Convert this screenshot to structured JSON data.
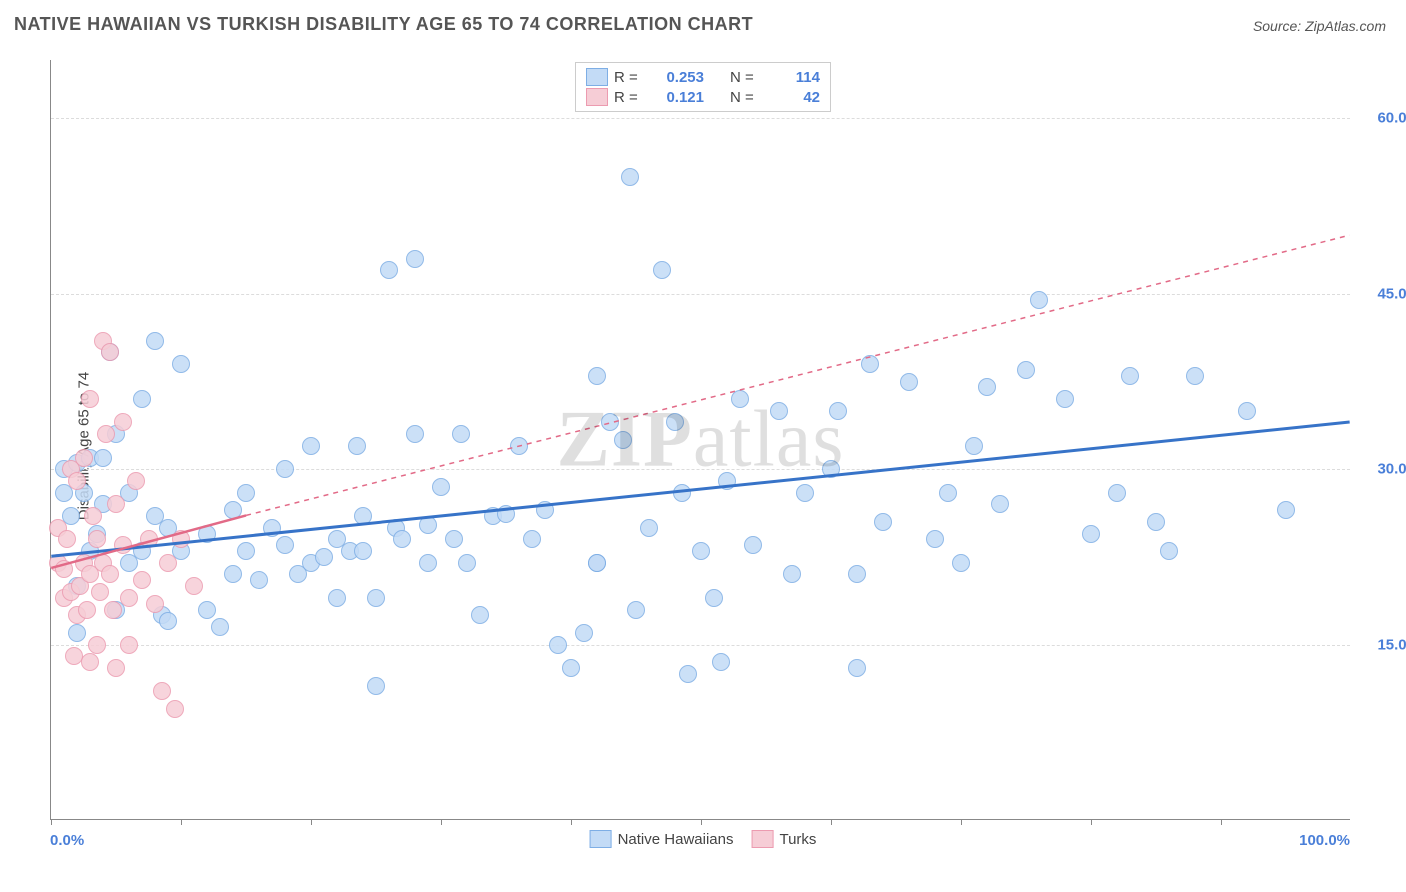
{
  "title": "NATIVE HAWAIIAN VS TURKISH DISABILITY AGE 65 TO 74 CORRELATION CHART",
  "source": "Source: ZipAtlas.com",
  "watermark_bold": "ZIP",
  "watermark_rest": "atlas",
  "ylabel": "Disability Age 65 to 74",
  "chart": {
    "type": "scatter",
    "xlim": [
      0,
      100
    ],
    "ylim": [
      0,
      65
    ],
    "x_min_label": "0.0%",
    "x_max_label": "100.0%",
    "y_ticks": [
      15,
      30,
      45,
      60
    ],
    "y_tick_labels": [
      "15.0%",
      "30.0%",
      "45.0%",
      "60.0%"
    ],
    "x_tick_positions": [
      0,
      10,
      20,
      30,
      40,
      50,
      60,
      70,
      80,
      90
    ],
    "background_color": "#ffffff",
    "grid_color": "#dcdcdc",
    "axis_color": "#888888",
    "point_radius": 9,
    "series": [
      {
        "name": "Native Hawaiians",
        "color_fill": "#c3dbf6",
        "color_stroke": "#7eaee5",
        "r_value": "0.253",
        "n_value": "114",
        "trend": {
          "x1": 0,
          "y1": 22.5,
          "x2": 100,
          "y2": 34,
          "stroke": "#3773c8",
          "width": 3,
          "dash": "none",
          "extend_x1": 0,
          "extend_y1": 22.5,
          "extend_x2": 100,
          "extend_y2": 34
        },
        "points": [
          [
            1,
            28
          ],
          [
            1,
            30
          ],
          [
            1.5,
            26
          ],
          [
            2,
            30.5
          ],
          [
            2,
            20
          ],
          [
            2,
            16
          ],
          [
            2.5,
            28
          ],
          [
            3,
            23
          ],
          [
            3,
            31
          ],
          [
            3.5,
            24.5
          ],
          [
            4,
            27
          ],
          [
            4,
            31
          ],
          [
            4.5,
            40
          ],
          [
            5,
            33
          ],
          [
            5,
            18
          ],
          [
            6,
            28
          ],
          [
            6,
            22
          ],
          [
            7,
            36
          ],
          [
            7,
            23
          ],
          [
            8,
            41
          ],
          [
            8,
            26
          ],
          [
            8.5,
            17.5
          ],
          [
            9,
            25
          ],
          [
            9,
            17
          ],
          [
            10,
            39
          ],
          [
            10,
            23
          ],
          [
            12,
            18
          ],
          [
            12,
            24.5
          ],
          [
            13,
            16.5
          ],
          [
            14,
            26.5
          ],
          [
            14,
            21
          ],
          [
            15,
            23
          ],
          [
            15,
            28
          ],
          [
            16,
            20.5
          ],
          [
            17,
            25
          ],
          [
            18,
            30
          ],
          [
            18,
            23.5
          ],
          [
            19,
            21
          ],
          [
            20,
            22
          ],
          [
            20,
            32
          ],
          [
            21,
            22.5
          ],
          [
            22,
            24
          ],
          [
            22,
            19
          ],
          [
            23,
            23
          ],
          [
            23.5,
            32
          ],
          [
            24,
            26
          ],
          [
            24,
            23
          ],
          [
            25,
            19
          ],
          [
            25,
            11.5
          ],
          [
            26,
            47
          ],
          [
            26.5,
            25
          ],
          [
            27,
            24
          ],
          [
            28,
            33
          ],
          [
            28,
            48
          ],
          [
            29,
            22
          ],
          [
            29,
            25.2
          ],
          [
            30,
            28.5
          ],
          [
            31,
            24
          ],
          [
            31.5,
            33
          ],
          [
            32,
            22
          ],
          [
            33,
            17.5
          ],
          [
            34,
            26
          ],
          [
            35,
            26.2
          ],
          [
            36,
            32
          ],
          [
            37,
            24
          ],
          [
            38,
            26.5
          ],
          [
            39,
            15
          ],
          [
            40,
            13
          ],
          [
            41,
            16
          ],
          [
            42,
            38
          ],
          [
            42,
            22
          ],
          [
            43,
            34
          ],
          [
            44,
            32.5
          ],
          [
            44.5,
            55
          ],
          [
            45,
            18
          ],
          [
            46,
            25
          ],
          [
            47,
            47
          ],
          [
            48,
            34
          ],
          [
            48.5,
            28
          ],
          [
            49,
            12.5
          ],
          [
            50,
            23
          ],
          [
            51,
            19
          ],
          [
            51.5,
            13.5
          ],
          [
            52,
            29
          ],
          [
            53,
            36
          ],
          [
            54,
            23.5
          ],
          [
            56,
            35
          ],
          [
            57,
            21
          ],
          [
            58,
            28
          ],
          [
            60,
            30
          ],
          [
            60.5,
            35
          ],
          [
            62,
            21
          ],
          [
            62,
            13
          ],
          [
            63,
            39
          ],
          [
            64,
            25.5
          ],
          [
            66,
            37.5
          ],
          [
            68,
            24
          ],
          [
            69,
            28
          ],
          [
            70,
            22
          ],
          [
            71,
            32
          ],
          [
            72,
            37
          ],
          [
            73,
            27
          ],
          [
            75,
            38.5
          ],
          [
            76,
            44.5
          ],
          [
            78,
            36
          ],
          [
            80,
            24.5
          ],
          [
            82,
            28
          ],
          [
            83,
            38
          ],
          [
            85,
            25.5
          ],
          [
            86,
            23
          ],
          [
            88,
            38
          ],
          [
            92,
            35
          ],
          [
            95,
            26.5
          ],
          [
            42,
            22
          ]
        ]
      },
      {
        "name": "Turks",
        "color_fill": "#f6cdd6",
        "color_stroke": "#ec9bb0",
        "r_value": "0.121",
        "n_value": "42",
        "trend": {
          "x1": 0,
          "y1": 21.5,
          "x2": 15,
          "y2": 26,
          "stroke": "#e26a87",
          "width": 2.5,
          "dash": "none",
          "extend_x1": 15,
          "extend_y1": 26,
          "extend_x2": 100,
          "extend_y2": 50,
          "extend_dash": "5,5"
        },
        "points": [
          [
            0.5,
            22
          ],
          [
            0.5,
            25
          ],
          [
            1,
            21.5
          ],
          [
            1,
            19
          ],
          [
            1.2,
            24
          ],
          [
            1.5,
            30
          ],
          [
            1.5,
            19.5
          ],
          [
            1.8,
            14
          ],
          [
            2,
            17.5
          ],
          [
            2,
            29
          ],
          [
            2.2,
            20
          ],
          [
            2.5,
            31
          ],
          [
            2.5,
            22
          ],
          [
            2.8,
            18
          ],
          [
            3,
            36
          ],
          [
            3,
            21
          ],
          [
            3,
            13.5
          ],
          [
            3.2,
            26
          ],
          [
            3.5,
            24
          ],
          [
            3.5,
            15
          ],
          [
            3.8,
            19.5
          ],
          [
            4,
            22
          ],
          [
            4,
            41
          ],
          [
            4.2,
            33
          ],
          [
            4.5,
            21
          ],
          [
            4.5,
            40
          ],
          [
            4.8,
            18
          ],
          [
            5,
            27
          ],
          [
            5,
            13
          ],
          [
            5.5,
            23.5
          ],
          [
            5.5,
            34
          ],
          [
            6,
            19
          ],
          [
            6,
            15
          ],
          [
            6.5,
            29
          ],
          [
            7,
            20.5
          ],
          [
            7.5,
            24
          ],
          [
            8,
            18.5
          ],
          [
            8.5,
            11
          ],
          [
            9,
            22
          ],
          [
            9.5,
            9.5
          ],
          [
            10,
            24
          ],
          [
            11,
            20
          ]
        ]
      }
    ]
  },
  "legend_top": {
    "rows": [
      {
        "swatch_fill": "#c3dbf6",
        "swatch_stroke": "#7eaee5",
        "r_label": "R =",
        "r_val": "0.253",
        "n_label": "N =",
        "n_val": "114"
      },
      {
        "swatch_fill": "#f6cdd6",
        "swatch_stroke": "#ec9bb0",
        "r_label": "R =",
        "r_val": "0.121",
        "n_label": "N =",
        "n_val": "42"
      }
    ]
  },
  "legend_bottom": {
    "items": [
      {
        "swatch_fill": "#c3dbf6",
        "swatch_stroke": "#7eaee5",
        "label": "Native Hawaiians"
      },
      {
        "swatch_fill": "#f6cdd6",
        "swatch_stroke": "#ec9bb0",
        "label": "Turks"
      }
    ]
  }
}
